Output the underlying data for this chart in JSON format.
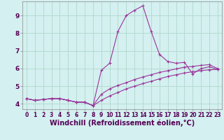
{
  "title": "",
  "xlabel": "Windchill (Refroidissement éolien,°C)",
  "ylabel": "",
  "background_color": "#d4f0f0",
  "grid_color": "#b0d8cc",
  "line_color": "#993399",
  "xlim": [
    -0.5,
    23.5
  ],
  "ylim": [
    3.7,
    9.8
  ],
  "xticks": [
    0,
    1,
    2,
    3,
    4,
    5,
    6,
    7,
    8,
    9,
    10,
    11,
    12,
    13,
    14,
    15,
    16,
    17,
    18,
    19,
    20,
    21,
    22,
    23
  ],
  "yticks": [
    4,
    5,
    6,
    7,
    8,
    9
  ],
  "line1_x": [
    0,
    1,
    2,
    3,
    4,
    5,
    6,
    7,
    8,
    9,
    10,
    11,
    12,
    13,
    14,
    15,
    16,
    17,
    18,
    19,
    20,
    21,
    22,
    23
  ],
  "line1_y": [
    4.3,
    4.2,
    4.25,
    4.3,
    4.3,
    4.2,
    4.1,
    4.1,
    3.9,
    5.9,
    6.3,
    8.1,
    9.0,
    9.3,
    9.55,
    8.1,
    6.8,
    6.4,
    6.3,
    6.35,
    5.7,
    6.0,
    6.1,
    5.95
  ],
  "line2_x": [
    0,
    1,
    2,
    3,
    4,
    5,
    6,
    7,
    8,
    9,
    10,
    11,
    12,
    13,
    14,
    15,
    16,
    17,
    18,
    19,
    20,
    21,
    22,
    23
  ],
  "line2_y": [
    4.3,
    4.2,
    4.25,
    4.3,
    4.3,
    4.2,
    4.1,
    4.1,
    3.9,
    4.55,
    4.85,
    5.05,
    5.2,
    5.38,
    5.52,
    5.65,
    5.78,
    5.88,
    5.98,
    6.08,
    6.12,
    6.18,
    6.22,
    6.0
  ],
  "line3_x": [
    0,
    1,
    2,
    3,
    4,
    5,
    6,
    7,
    8,
    9,
    10,
    11,
    12,
    13,
    14,
    15,
    16,
    17,
    18,
    19,
    20,
    21,
    22,
    23
  ],
  "line3_y": [
    4.3,
    4.2,
    4.25,
    4.3,
    4.3,
    4.2,
    4.1,
    4.1,
    3.9,
    4.2,
    4.45,
    4.65,
    4.85,
    5.0,
    5.15,
    5.28,
    5.42,
    5.55,
    5.65,
    5.75,
    5.82,
    5.88,
    5.93,
    5.95
  ],
  "tick_fontsize": 5.5,
  "xlabel_fontsize": 7.0,
  "marker_size": 3.0
}
